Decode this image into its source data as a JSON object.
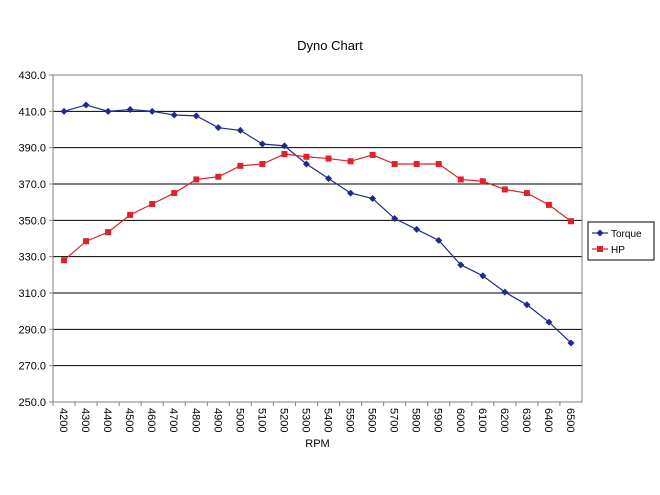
{
  "chart_data": {
    "type": "line",
    "title": "Dyno Chart",
    "xlabel": "RPM",
    "ylabel": "",
    "ylim": [
      250,
      430
    ],
    "y_ticks": [
      "250.0",
      "270.0",
      "290.0",
      "310.0",
      "330.0",
      "350.0",
      "370.0",
      "390.0",
      "410.0",
      "430.0"
    ],
    "categories": [
      "4200",
      "4300",
      "4400",
      "4500",
      "4600",
      "4700",
      "4800",
      "4900",
      "5000",
      "5100",
      "5200",
      "5300",
      "5400",
      "5500",
      "5600",
      "5700",
      "5800",
      "5900",
      "6000",
      "6100",
      "6200",
      "6300",
      "6400",
      "6500"
    ],
    "grid": "horizontal",
    "legend_position": "right",
    "series": [
      {
        "name": "Torque",
        "color": "#1f2a8c",
        "marker": "diamond",
        "values": [
          410.0,
          413.5,
          410.0,
          411.0,
          410.0,
          408.0,
          407.5,
          401.0,
          399.5,
          392.0,
          391.0,
          381.0,
          373.0,
          365.0,
          362.0,
          351.0,
          345.0,
          339.0,
          325.5,
          319.5,
          310.5,
          303.5,
          294.0,
          282.5
        ]
      },
      {
        "name": "HP",
        "color": "#e0202a",
        "marker": "square",
        "values": [
          328.0,
          338.5,
          343.5,
          353.0,
          359.0,
          365.0,
          372.5,
          374.0,
          380.0,
          381.0,
          386.5,
          385.0,
          384.0,
          382.5,
          386.0,
          381.0,
          381.0,
          381.0,
          372.5,
          371.5,
          367.0,
          365.0,
          358.5,
          349.5
        ]
      }
    ]
  }
}
